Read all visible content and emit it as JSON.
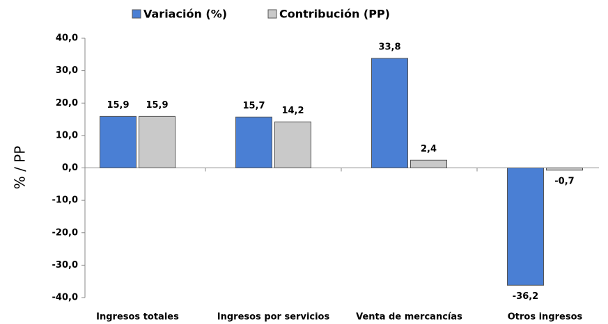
{
  "chart_data": {
    "type": "bar",
    "categories": [
      "Ingresos totales",
      "Ingresos por servicios",
      "Venta de mercancías",
      "Otros ingresos"
    ],
    "series": [
      {
        "name": "Variación (%)",
        "color": "#4a7fd4",
        "values": [
          15.9,
          15.7,
          33.8,
          -36.2
        ],
        "value_labels": [
          "15,9",
          "15,7",
          "33,8",
          "-36,2"
        ]
      },
      {
        "name": "Contribución (PP)",
        "color": "#c9c9c9",
        "values": [
          15.9,
          14.2,
          2.4,
          -0.7
        ],
        "value_labels": [
          "15,9",
          "14,2",
          "2,4",
          "-0,7"
        ]
      }
    ],
    "ylabel": "% / PP",
    "ylim": [
      -40,
      40
    ],
    "yticks": [
      {
        "value": -40,
        "label": "-40,0"
      },
      {
        "value": -30,
        "label": "-30,0"
      },
      {
        "value": -20,
        "label": "-20,0"
      },
      {
        "value": -10,
        "label": "-10,0"
      },
      {
        "value": 0,
        "label": "0,0"
      },
      {
        "value": 10,
        "label": "10,0"
      },
      {
        "value": 20,
        "label": "20,0"
      },
      {
        "value": 30,
        "label": "30,0"
      },
      {
        "value": 40,
        "label": "40,0"
      }
    ]
  }
}
